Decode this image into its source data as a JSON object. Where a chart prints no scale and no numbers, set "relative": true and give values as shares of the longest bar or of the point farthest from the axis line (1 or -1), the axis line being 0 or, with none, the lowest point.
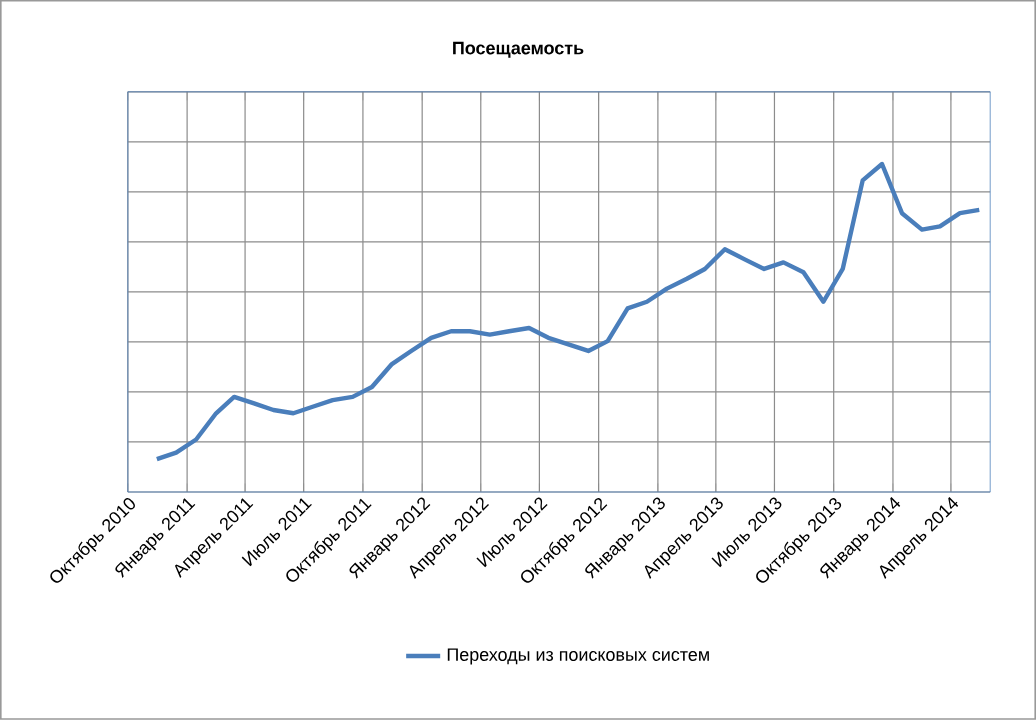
{
  "chart_data": {
    "type": "line",
    "title": "Посещаемость",
    "relative": true,
    "grid": true,
    "legend": "bottom",
    "marker": "none",
    "line_style": "solid",
    "x": [
      "2010-11-15",
      "2010-12-15",
      "2011-01-15",
      "2011-02-15",
      "2011-03-15",
      "2011-04-15",
      "2011-05-15",
      "2011-06-15",
      "2011-07-15",
      "2011-08-15",
      "2011-09-15",
      "2011-10-15",
      "2011-11-15",
      "2011-12-15",
      "2012-01-15",
      "2012-02-15",
      "2012-03-15",
      "2012-04-15",
      "2012-05-15",
      "2012-06-15",
      "2012-07-15",
      "2012-08-15",
      "2012-09-15",
      "2012-10-15",
      "2012-11-15",
      "2012-12-15",
      "2013-01-15",
      "2013-02-15",
      "2013-03-15",
      "2013-04-15",
      "2013-05-15",
      "2013-06-15",
      "2013-07-15",
      "2013-08-15",
      "2013-09-15",
      "2013-10-15",
      "2013-11-15",
      "2013-12-15",
      "2014-01-15",
      "2014-02-15",
      "2014-03-15",
      "2014-04-15",
      "2014-05-15"
    ],
    "xlim": [
      "2010-10-01",
      "2014-06-01"
    ],
    "xticks": [
      {
        "value": "2010-10-01",
        "label": "Октябрь 2010"
      },
      {
        "value": "2011-01-01",
        "label": "Январь 2011"
      },
      {
        "value": "2011-04-01",
        "label": "Апрель 2011"
      },
      {
        "value": "2011-07-01",
        "label": "Июль 2011"
      },
      {
        "value": "2011-10-01",
        "label": "Октябрь 2011"
      },
      {
        "value": "2012-01-01",
        "label": "Январь 2012"
      },
      {
        "value": "2012-04-01",
        "label": "Апрель 2012"
      },
      {
        "value": "2012-07-01",
        "label": "Июль 2012"
      },
      {
        "value": "2012-10-01",
        "label": "Октябрь 2012"
      },
      {
        "value": "2013-01-01",
        "label": "Январь 2013"
      },
      {
        "value": "2013-04-01",
        "label": "Апрель 2013"
      },
      {
        "value": "2013-07-01",
        "label": "Июль 2013"
      },
      {
        "value": "2013-10-01",
        "label": "Октябрь 2013"
      },
      {
        "value": "2014-01-01",
        "label": "Январь 2014"
      },
      {
        "value": "2014-04-01",
        "label": "Апрель 2014"
      }
    ],
    "series": [
      {
        "name": "Переходы из поисковых систем",
        "color": "#4a7ebb",
        "values": [
          0.1,
          0.12,
          0.16,
          0.24,
          0.29,
          0.27,
          0.25,
          0.24,
          0.26,
          0.28,
          0.29,
          0.32,
          0.39,
          0.43,
          0.47,
          0.49,
          0.49,
          0.48,
          0.49,
          0.5,
          0.47,
          0.45,
          0.43,
          0.46,
          0.56,
          0.58,
          0.62,
          0.65,
          0.68,
          0.74,
          0.71,
          0.68,
          0.7,
          0.67,
          0.58,
          0.68,
          0.95,
          1,
          0.85,
          0.8,
          0.81,
          0.85,
          0.86
        ]
      }
    ]
  }
}
